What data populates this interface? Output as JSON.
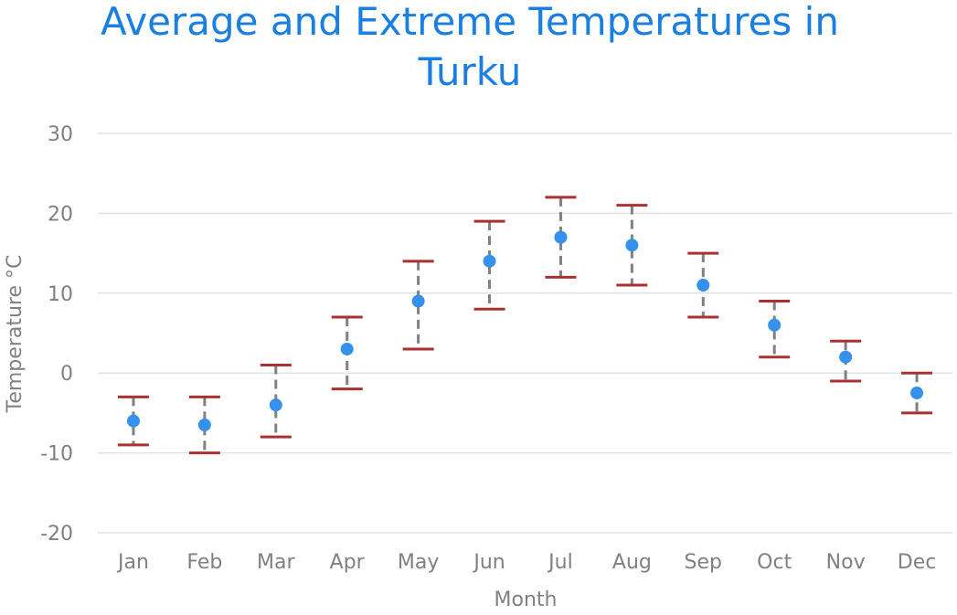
{
  "chart_data": {
    "type": "errorbar",
    "title": "Average and Extreme Temperatures in Turku",
    "title_lines": [
      "Average and Extreme Temperatures in",
      "Turku"
    ],
    "xlabel": "Month",
    "ylabel": "Temperature °C",
    "categories": [
      "Jan",
      "Feb",
      "Mar",
      "Apr",
      "May",
      "Jun",
      "Jul",
      "Aug",
      "Sep",
      "Oct",
      "Nov",
      "Dec"
    ],
    "average": [
      -6,
      -6.5,
      -4,
      3,
      9,
      14,
      17,
      16,
      11,
      6,
      2,
      -2.5
    ],
    "high": [
      -3,
      -3,
      1,
      7,
      14,
      19,
      22,
      21,
      15,
      9,
      4,
      0
    ],
    "low": [
      -9,
      -10,
      -8,
      -2,
      3,
      8,
      12,
      11,
      7,
      2,
      -1,
      -5
    ],
    "ylim": [
      -20,
      30
    ],
    "yticks": [
      "-20",
      "-10",
      "0",
      "10",
      "20",
      "30"
    ],
    "grid": true,
    "colors": {
      "title": "#1a7fe0",
      "average": "#3591ec",
      "extreme": "#a83232",
      "range_line": "#808080",
      "axis_text": "#808080",
      "grid": "#e2e2e2"
    }
  }
}
